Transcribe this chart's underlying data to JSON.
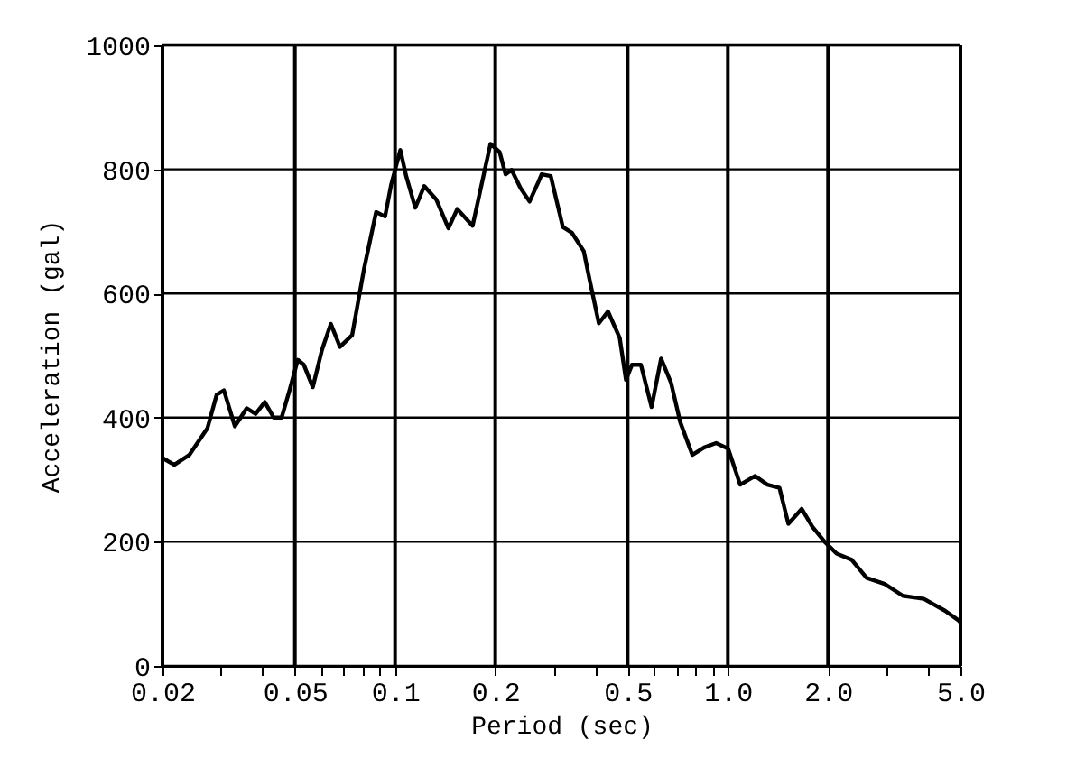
{
  "chart_data": {
    "type": "line",
    "xlabel": "Period (sec)",
    "ylabel": "Acceleration (gal)",
    "log": "x",
    "grid": true,
    "marker": "none",
    "line_style": "solid",
    "xlim": [
      0.02,
      5.0
    ],
    "ylim": [
      0,
      1000
    ],
    "xticks": [
      0.02,
      0.05,
      0.1,
      0.2,
      0.5,
      {
        "value": 1,
        "label": "1.0"
      },
      {
        "value": 2,
        "label": "2.0"
      },
      {
        "value": 5,
        "label": "5.0"
      },
      {
        "value": 0.03,
        "label": null
      },
      {
        "value": 0.04,
        "label": null
      },
      {
        "value": 0.06,
        "label": null
      },
      {
        "value": 0.07,
        "label": null
      },
      {
        "value": 0.08,
        "label": null
      },
      {
        "value": 0.09,
        "label": null
      },
      {
        "value": 0.3,
        "label": null
      },
      {
        "value": 0.4,
        "label": null
      },
      {
        "value": 0.6,
        "label": null
      },
      {
        "value": 0.7,
        "label": null
      },
      {
        "value": 0.8,
        "label": null
      },
      {
        "value": 0.9,
        "label": null
      },
      {
        "value": 3,
        "label": null
      },
      {
        "value": 4,
        "label": null
      }
    ],
    "yticks": [
      0,
      200,
      400,
      600,
      800,
      1000
    ],
    "series": [
      {
        "color": "#000000",
        "x": [
          0.02,
          0.0217,
          0.0241,
          0.0273,
          0.0291,
          0.0306,
          0.033,
          0.0358,
          0.0381,
          0.0406,
          0.0432,
          0.0456,
          0.0483,
          0.051,
          0.0532,
          0.0566,
          0.0603,
          0.0641,
          0.0683,
          0.0743,
          0.0807,
          0.0877,
          0.0933,
          0.0973,
          0.1037,
          0.108,
          0.115,
          0.1224,
          0.1331,
          0.1446,
          0.1538,
          0.171,
          0.1819,
          0.1935,
          0.2061,
          0.2148,
          0.2239,
          0.2381,
          0.2536,
          0.2698,
          0.2757,
          0.2937,
          0.3192,
          0.3397,
          0.369,
          0.3849,
          0.4096,
          0.4364,
          0.4733,
          0.4941,
          0.515,
          0.548,
          0.59,
          0.63,
          0.675,
          0.719,
          0.782,
          0.849,
          0.922,
          1.002,
          1.089,
          1.208,
          1.315,
          1.429,
          1.52,
          1.667,
          1.796,
          1.954,
          2.123,
          2.356,
          2.612,
          2.96,
          3.356,
          3.88,
          4.49,
          4.92,
          5.0
        ],
        "values": [
          335,
          324,
          340,
          383,
          437,
          444,
          386,
          415,
          406,
          425,
          400,
          400,
          446,
          493,
          485,
          449,
          509,
          551,
          514,
          533,
          640,
          731,
          724,
          775,
          831,
          789,
          738,
          773,
          751,
          705,
          736,
          709,
          775,
          841,
          828,
          792,
          799,
          770,
          748,
          780,
          792,
          789,
          707,
          698,
          668,
          620,
          552,
          571,
          528,
          461,
          485,
          485,
          417,
          495,
          456,
          393,
          340,
          352,
          359,
          350,
          292,
          306,
          292,
          287,
          229,
          253,
          224,
          200,
          181,
          171,
          142,
          132,
          113,
          108,
          89,
          74,
          70
        ]
      }
    ]
  }
}
